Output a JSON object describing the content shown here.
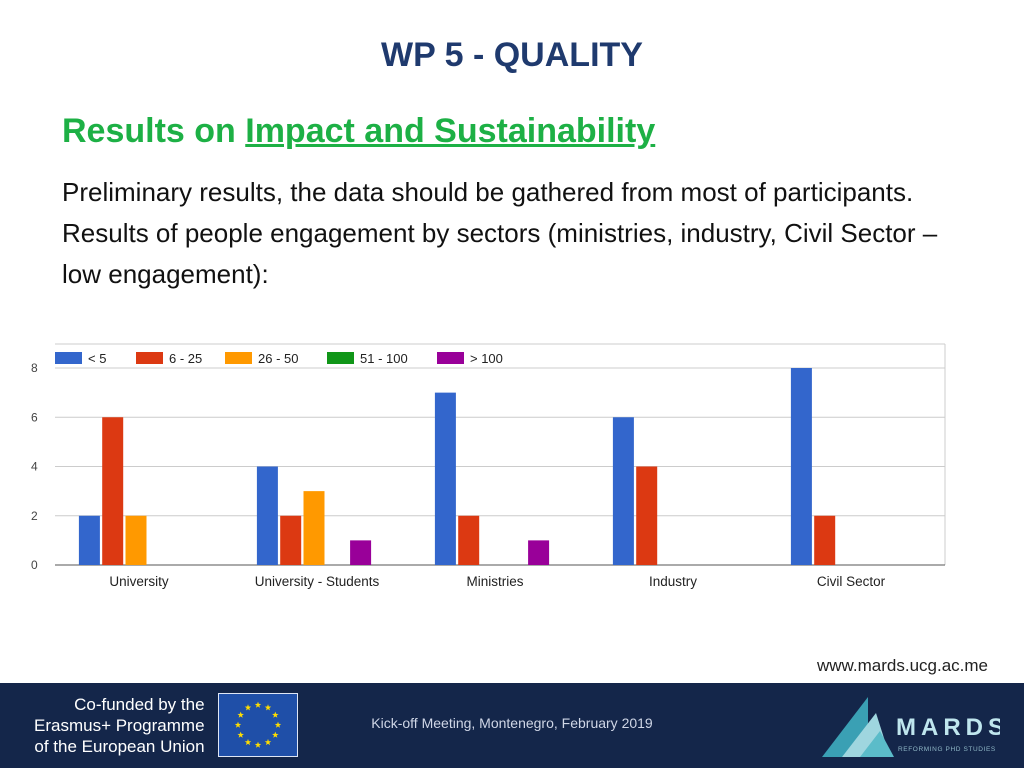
{
  "slide": {
    "title": "WP 5 -  QUALITY",
    "heading_prefix": "Results on ",
    "heading_link": "Impact and Sustainability",
    "body": "Preliminary results, the data should be gathered from most of participants. Results of people engagement by sectors (ministries, industry, Civil Sector – low engagement):",
    "website": "www.mards.ucg.ac.me"
  },
  "footer": {
    "cofund_lines": [
      "Co-funded by the",
      "Erasmus+ Programme",
      "of the European Union"
    ],
    "meeting": "Kick-off Meeting, Montenegro, February 2019",
    "logo_text": "MARDS",
    "logo_tagline": "REFORMING PHD STUDIES"
  },
  "chart_data": {
    "type": "bar",
    "categories": [
      "University",
      "University - Students",
      "Ministries",
      "Industry",
      "Civil Sector"
    ],
    "series": [
      {
        "name": "< 5",
        "color": "#3366cc",
        "values": [
          2,
          4,
          7,
          6,
          8
        ]
      },
      {
        "name": "6 - 25",
        "color": "#dc3912",
        "values": [
          6,
          2,
          2,
          4,
          2
        ]
      },
      {
        "name": "26 - 50",
        "color": "#ff9900",
        "values": [
          2,
          3,
          0,
          0,
          0
        ]
      },
      {
        "name": "51 - 100",
        "color": "#109618",
        "values": [
          0,
          0,
          0,
          0,
          0
        ]
      },
      {
        "name": "> 100",
        "color": "#990099",
        "values": [
          0,
          1,
          1,
          0,
          0
        ]
      }
    ],
    "ylim": [
      0,
      8
    ],
    "yticks": [
      0,
      2,
      4,
      6,
      8
    ],
    "grid": true,
    "legend": "top-left"
  }
}
